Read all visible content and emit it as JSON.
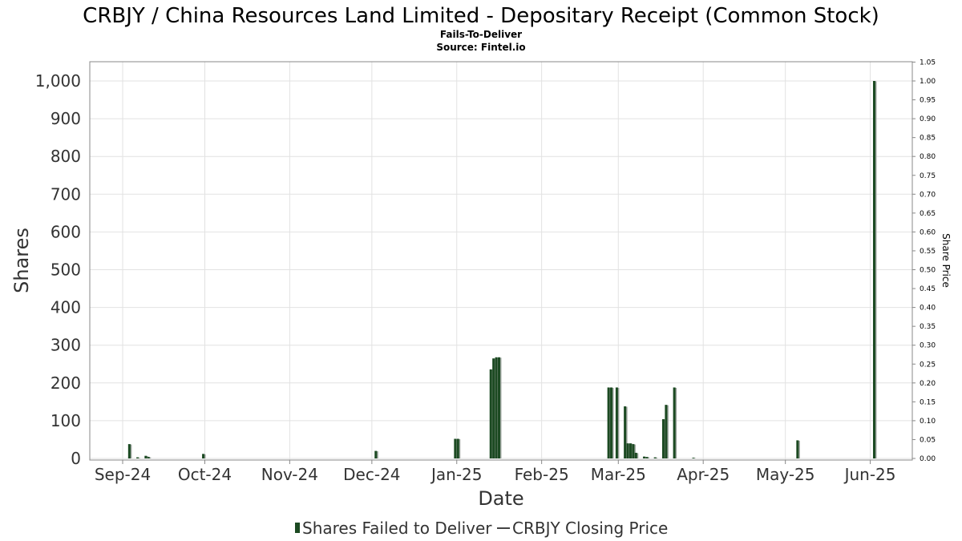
{
  "chart_data": {
    "type": "bar",
    "title": "CRBJY / China Resources Land Limited - Depositary Receipt (Common Stock)",
    "subtitle_lines": [
      "Fails-To-Deliver",
      "Source: Fintel.io"
    ],
    "xlabel": "Date",
    "ylabel": "Shares",
    "y2label": "Share Price",
    "ylim": [
      0,
      1000
    ],
    "y2lim": [
      0,
      1.05
    ],
    "yticks": [
      "0",
      "100",
      "200",
      "300",
      "400",
      "500",
      "600",
      "700",
      "800",
      "900",
      "1,000"
    ],
    "y2ticks": [
      "0.00",
      "0.05",
      "0.10",
      "0.15",
      "0.20",
      "0.25",
      "0.30",
      "0.35",
      "0.40",
      "0.45",
      "0.50",
      "0.55",
      "0.60",
      "0.65",
      "0.70",
      "0.75",
      "0.80",
      "0.85",
      "0.90",
      "0.95",
      "1.00",
      "1.05"
    ],
    "xticks": [
      {
        "label": "Sep-24",
        "date": "2024-09-01"
      },
      {
        "label": "Oct-24",
        "date": "2024-10-01"
      },
      {
        "label": "Nov-24",
        "date": "2024-11-01"
      },
      {
        "label": "Dec-24",
        "date": "2024-12-01"
      },
      {
        "label": "Jan-25",
        "date": "2025-01-01"
      },
      {
        "label": "Feb-25",
        "date": "2025-02-01"
      },
      {
        "label": "Mar-25",
        "date": "2025-03-01"
      },
      {
        "label": "Apr-25",
        "date": "2025-04-01"
      },
      {
        "label": "May-25",
        "date": "2025-05-01"
      },
      {
        "label": "Jun-25",
        "date": "2025-06-01"
      }
    ],
    "grid": true,
    "legend": "bottom-center",
    "series": [
      {
        "name": "Shares Failed to Deliver",
        "kind": "bar",
        "color": "#1c4a22",
        "points": [
          {
            "date": "2024-09-03",
            "value": 38
          },
          {
            "date": "2024-09-06",
            "value": 3
          },
          {
            "date": "2024-09-09",
            "value": 7
          },
          {
            "date": "2024-09-10",
            "value": 4
          },
          {
            "date": "2024-09-30",
            "value": 12
          },
          {
            "date": "2024-12-02",
            "value": 20
          },
          {
            "date": "2024-12-31",
            "value": 52
          },
          {
            "date": "2025-01-01",
            "value": 52
          },
          {
            "date": "2025-01-13",
            "value": 236
          },
          {
            "date": "2025-01-14",
            "value": 265
          },
          {
            "date": "2025-01-15",
            "value": 268
          },
          {
            "date": "2025-01-16",
            "value": 268
          },
          {
            "date": "2025-02-25",
            "value": 188
          },
          {
            "date": "2025-02-26",
            "value": 188
          },
          {
            "date": "2025-02-28",
            "value": 188
          },
          {
            "date": "2025-03-03",
            "value": 138
          },
          {
            "date": "2025-03-04",
            "value": 40
          },
          {
            "date": "2025-03-05",
            "value": 40
          },
          {
            "date": "2025-03-06",
            "value": 38
          },
          {
            "date": "2025-03-07",
            "value": 15
          },
          {
            "date": "2025-03-10",
            "value": 5
          },
          {
            "date": "2025-03-11",
            "value": 4
          },
          {
            "date": "2025-03-14",
            "value": 3
          },
          {
            "date": "2025-03-17",
            "value": 104
          },
          {
            "date": "2025-03-18",
            "value": 142
          },
          {
            "date": "2025-03-21",
            "value": 188
          },
          {
            "date": "2025-03-28",
            "value": 2
          },
          {
            "date": "2025-05-05",
            "value": 48
          },
          {
            "date": "2025-06-02",
            "value": 1000
          }
        ]
      },
      {
        "name": "CRBJY Closing Price",
        "kind": "line",
        "color": "#444444",
        "points": []
      }
    ]
  }
}
